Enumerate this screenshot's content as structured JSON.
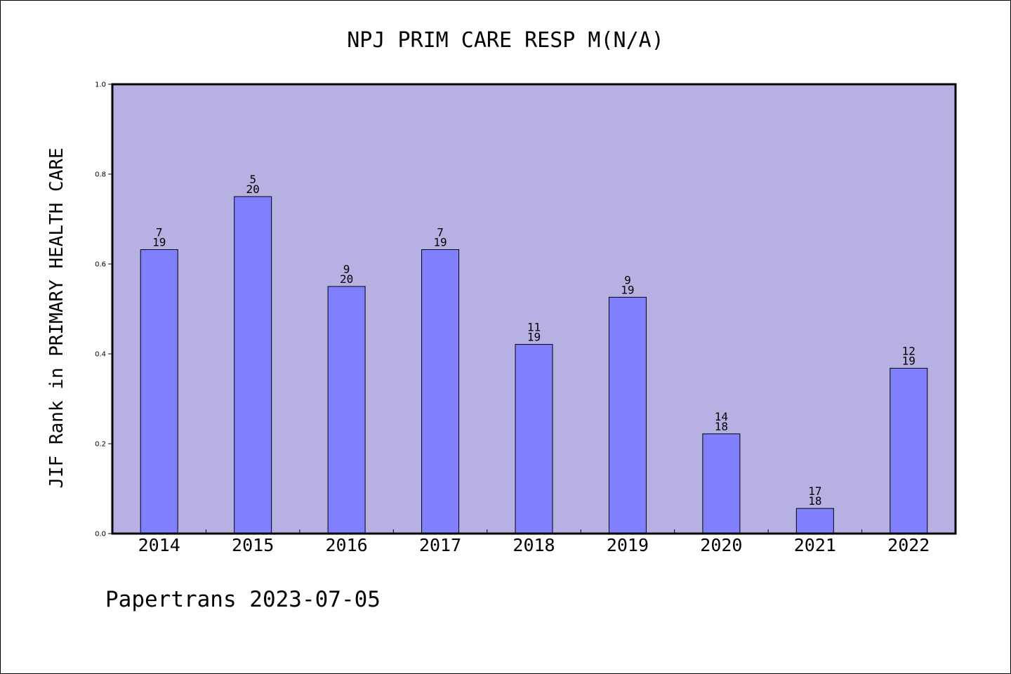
{
  "chart_data": {
    "type": "bar",
    "title": "NPJ PRIM CARE RESP M(N/A)",
    "ylabel": "JIF Rank in PRIMARY HEALTH CARE",
    "xlabel": "",
    "ylim": [
      0,
      1.0
    ],
    "yticks": [
      "0.0",
      "0.2",
      "0.4",
      "0.6",
      "0.8",
      "1.0"
    ],
    "categories": [
      "2014",
      "2015",
      "2016",
      "2017",
      "2018",
      "2019",
      "2020",
      "2021",
      "2022"
    ],
    "values": [
      0.632,
      0.75,
      0.55,
      0.632,
      0.421,
      0.526,
      0.222,
      0.056,
      0.368
    ],
    "bar_labels": [
      {
        "top": "7",
        "bottom": "19"
      },
      {
        "top": "5",
        "bottom": "20"
      },
      {
        "top": "9",
        "bottom": "20"
      },
      {
        "top": "7",
        "bottom": "19"
      },
      {
        "top": "11",
        "bottom": "19"
      },
      {
        "top": "9",
        "bottom": "19"
      },
      {
        "top": "14",
        "bottom": "18"
      },
      {
        "top": "17",
        "bottom": "18"
      },
      {
        "top": "12",
        "bottom": "19"
      }
    ],
    "grid": false,
    "colors": {
      "plot_background": "#b7b0e2",
      "bar_fill": "#8080ff",
      "bar_stroke": "#000000"
    }
  },
  "footer": {
    "text": "Papertrans 2023-07-05"
  }
}
